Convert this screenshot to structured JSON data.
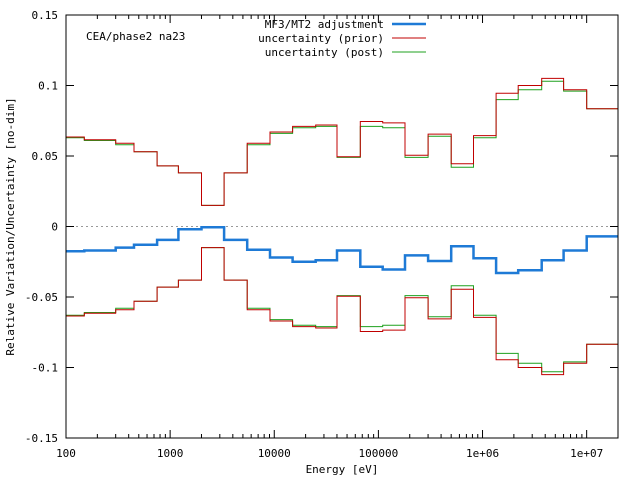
{
  "chart_data": {
    "type": "line",
    "style": "step",
    "xscale": "log",
    "xlim": [
      100,
      20000000
    ],
    "ylim": [
      -0.15,
      0.15
    ],
    "xlabel": "Energy [eV]",
    "ylabel": "Relative Variation/Uncertainty [no-dim]",
    "annotation": "CEA/phase2 na23",
    "legend_position": "top-center",
    "grid": false,
    "zero_line": "dotted",
    "xtick_labels": [
      {
        "value": 100,
        "label": "100"
      },
      {
        "value": 1000,
        "label": "1000"
      },
      {
        "value": 10000,
        "label": "10000"
      },
      {
        "value": 100000,
        "label": "100000"
      },
      {
        "value": 1000000,
        "label": "1e+06"
      },
      {
        "value": 10000000,
        "label": "1e+07"
      }
    ],
    "ytick_labels": [
      {
        "value": 0.15,
        "label": "0.15"
      },
      {
        "value": 0.1,
        "label": "0.1"
      },
      {
        "value": 0.05,
        "label": "0.05"
      },
      {
        "value": 0,
        "label": "0"
      },
      {
        "value": -0.05,
        "label": "-0.05"
      },
      {
        "value": -0.1,
        "label": "-0.1"
      },
      {
        "value": -0.15,
        "label": "-0.15"
      }
    ],
    "bin_edges": [
      100,
      150,
      300,
      450,
      750,
      1200,
      2000,
      3300,
      5500,
      9100,
      15000,
      25000,
      40000,
      67000,
      110000,
      180000,
      300000,
      500000,
      820000,
      1350000,
      2200000,
      3700000,
      6000000,
      10000000,
      20000000
    ],
    "series": [
      {
        "name": "MF3/MT2 adjustment",
        "color": "#1e7ad6",
        "width": 2.5,
        "mirror": false,
        "values": [
          -0.0175,
          -0.017,
          -0.015,
          -0.013,
          -0.0095,
          -0.002,
          -0.0005,
          -0.0095,
          -0.0165,
          -0.022,
          -0.025,
          -0.024,
          -0.017,
          -0.0285,
          -0.0305,
          -0.0205,
          -0.0245,
          -0.014,
          -0.0225,
          -0.033,
          -0.031,
          -0.024,
          -0.017,
          -0.007
        ]
      },
      {
        "name": "uncertainty (prior)",
        "color": "#c00000",
        "width": 1,
        "mirror": true,
        "values": [
          0.0635,
          0.0615,
          0.059,
          0.053,
          0.043,
          0.038,
          0.015,
          0.038,
          0.059,
          0.067,
          0.071,
          0.072,
          0.0495,
          0.0745,
          0.0735,
          0.0505,
          0.0655,
          0.0445,
          0.0645,
          0.0945,
          0.1,
          0.105,
          0.097,
          0.0835
        ]
      },
      {
        "name": "uncertainty (post)",
        "color": "#1fa01f",
        "width": 1,
        "mirror": true,
        "values": [
          0.063,
          0.061,
          0.058,
          0.053,
          0.043,
          0.038,
          0.015,
          0.038,
          0.058,
          0.066,
          0.07,
          0.071,
          0.049,
          0.071,
          0.07,
          0.049,
          0.064,
          0.042,
          0.063,
          0.09,
          0.097,
          0.103,
          0.096,
          0.0835
        ]
      }
    ]
  }
}
